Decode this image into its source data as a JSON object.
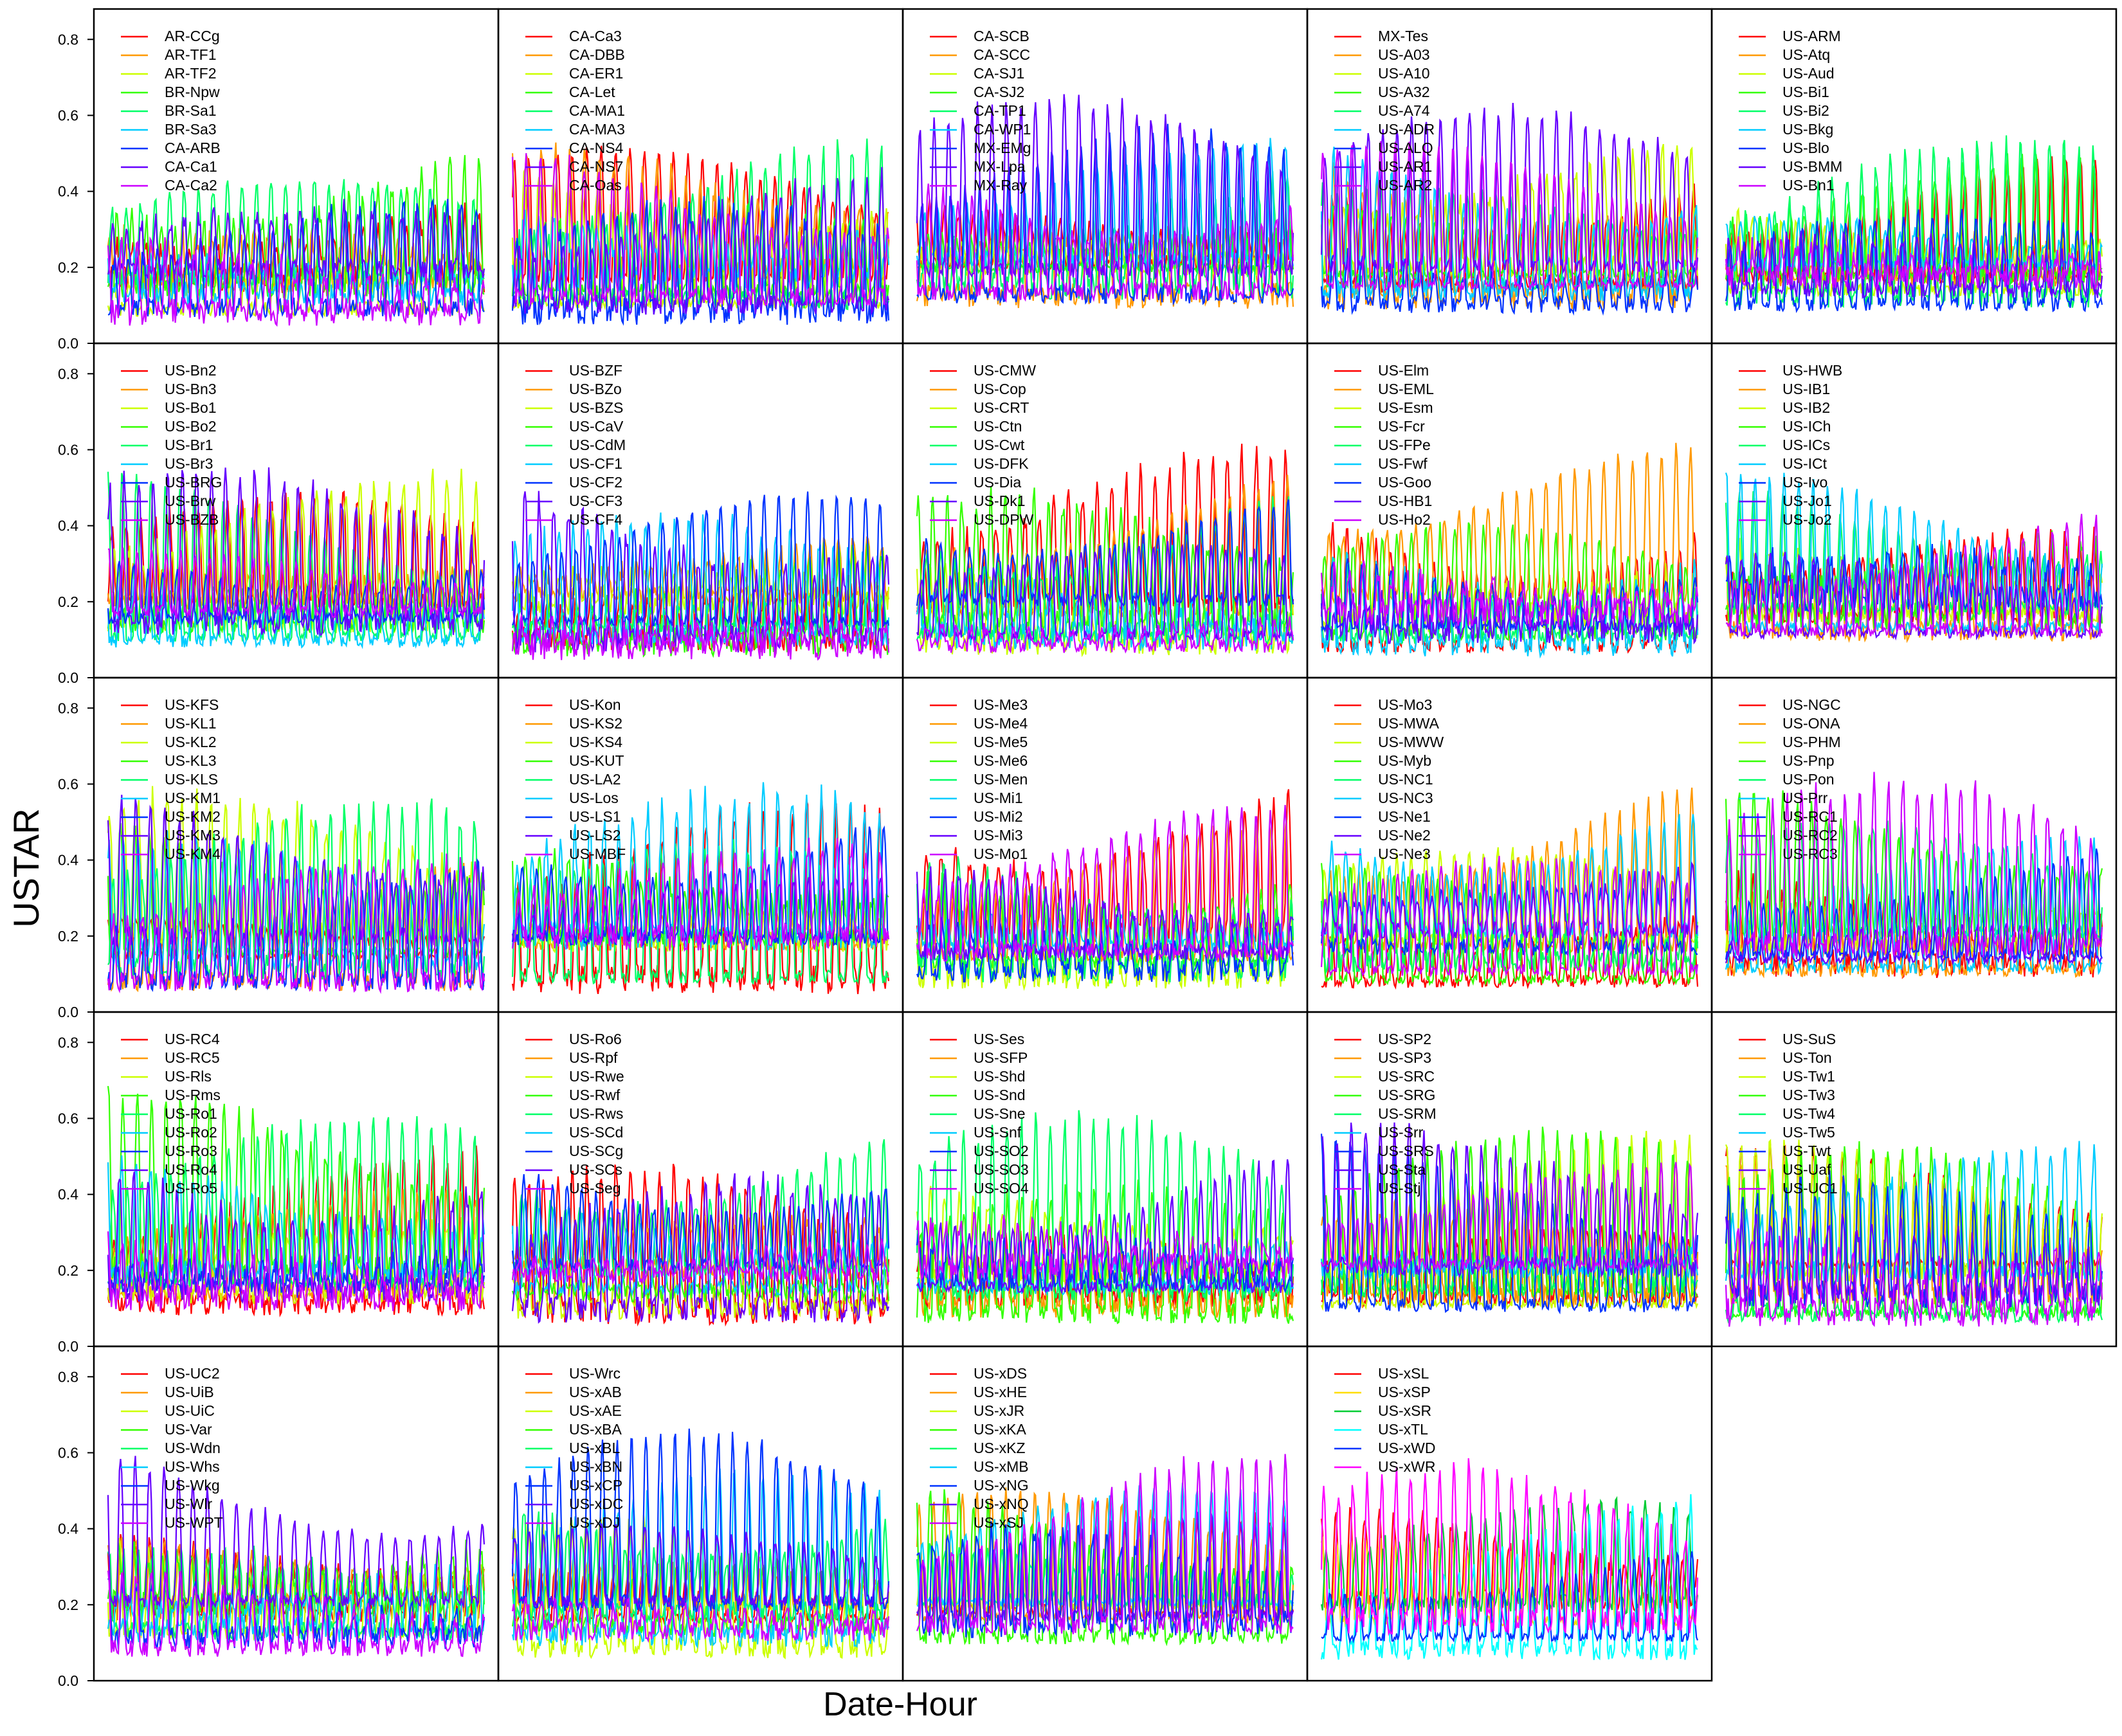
{
  "chart_data": {
    "type": "line",
    "xlabel": "Date-Hour",
    "ylabel": "USTAR",
    "ylim": [
      0,
      0.88
    ],
    "yticks": [
      "0.0",
      "0.2",
      "0.4",
      "0.6",
      "0.8"
    ],
    "grid": false,
    "legend_placement": "top-left",
    "series_colors": [
      "#FF0000",
      "#FF9900",
      "#CCFF00",
      "#33FF00",
      "#00FF66",
      "#00CCFF",
      "#0033FF",
      "#6600FF",
      "#CC00FF",
      "#FF0099"
    ],
    "panels": [
      {
        "series": [
          "AR-CCg",
          "AR-TF1",
          "AR-TF2",
          "BR-Npw",
          "BR-Sa1",
          "BR-Sa3",
          "CA-ARB",
          "CA-Ca1",
          "CA-Ca2"
        ]
      },
      {
        "series": [
          "CA-Ca3",
          "CA-DBB",
          "CA-ER1",
          "CA-Let",
          "CA-MA1",
          "CA-MA3",
          "CA-NS4",
          "CA-NS7",
          "CA-Oas"
        ]
      },
      {
        "series": [
          "CA-SCB",
          "CA-SCC",
          "CA-SJ1",
          "CA-SJ2",
          "CA-TP1",
          "CA-WP1",
          "MX-EMg",
          "MX-Lpa",
          "MX-Ray"
        ]
      },
      {
        "series": [
          "MX-Tes",
          "US-A03",
          "US-A10",
          "US-A32",
          "US-A74",
          "US-ADR",
          "US-ALQ",
          "US-AR1",
          "US-AR2"
        ]
      },
      {
        "series": [
          "US-ARM",
          "US-Atq",
          "US-Aud",
          "US-Bi1",
          "US-Bi2",
          "US-Bkg",
          "US-Blo",
          "US-BMM",
          "US-Bn1"
        ]
      },
      {
        "series": [
          "US-Bn2",
          "US-Bn3",
          "US-Bo1",
          "US-Bo2",
          "US-Br1",
          "US-Br3",
          "US-BRG",
          "US-Brw",
          "US-BZB"
        ]
      },
      {
        "series": [
          "US-BZF",
          "US-BZo",
          "US-BZS",
          "US-CaV",
          "US-CdM",
          "US-CF1",
          "US-CF2",
          "US-CF3",
          "US-CF4"
        ]
      },
      {
        "series": [
          "US-CMW",
          "US-Cop",
          "US-CRT",
          "US-Ctn",
          "US-Cwt",
          "US-DFK",
          "US-Dia",
          "US-Dk1",
          "US-DPW"
        ]
      },
      {
        "series": [
          "US-Elm",
          "US-EML",
          "US-Esm",
          "US-Fcr",
          "US-FPe",
          "US-Fwf",
          "US-Goo",
          "US-HB1",
          "US-Ho2"
        ]
      },
      {
        "series": [
          "US-HWB",
          "US-IB1",
          "US-IB2",
          "US-ICh",
          "US-ICs",
          "US-ICt",
          "US-Ivo",
          "US-Jo1",
          "US-Jo2"
        ]
      },
      {
        "series": [
          "US-KFS",
          "US-KL1",
          "US-KL2",
          "US-KL3",
          "US-KLS",
          "US-KM1",
          "US-KM2",
          "US-KM3",
          "US-KM4"
        ]
      },
      {
        "series": [
          "US-Kon",
          "US-KS2",
          "US-KS4",
          "US-KUT",
          "US-LA2",
          "US-Los",
          "US-LS1",
          "US-LS2",
          "US-MBF"
        ]
      },
      {
        "series": [
          "US-Me3",
          "US-Me4",
          "US-Me5",
          "US-Me6",
          "US-Men",
          "US-Mi1",
          "US-Mi2",
          "US-Mi3",
          "US-Mo1"
        ]
      },
      {
        "series": [
          "US-Mo3",
          "US-MWA",
          "US-MWW",
          "US-Myb",
          "US-NC1",
          "US-NC3",
          "US-Ne1",
          "US-Ne2",
          "US-Ne3"
        ]
      },
      {
        "series": [
          "US-NGC",
          "US-ONA",
          "US-PHM",
          "US-Pnp",
          "US-Pon",
          "US-Prr",
          "US-RC1",
          "US-RC2",
          "US-RC3"
        ]
      },
      {
        "series": [
          "US-RC4",
          "US-RC5",
          "US-Rls",
          "US-Rms",
          "US-Ro1",
          "US-Ro2",
          "US-Ro3",
          "US-Ro4",
          "US-Ro5"
        ]
      },
      {
        "series": [
          "US-Ro6",
          "US-Rpf",
          "US-Rwe",
          "US-Rwf",
          "US-Rws",
          "US-SCd",
          "US-SCg",
          "US-SCs",
          "US-Seg"
        ]
      },
      {
        "series": [
          "US-Ses",
          "US-SFP",
          "US-Shd",
          "US-Snd",
          "US-Sne",
          "US-Snf",
          "US-SO2",
          "US-SO3",
          "US-SO4"
        ]
      },
      {
        "series": [
          "US-SP2",
          "US-SP3",
          "US-SRC",
          "US-SRG",
          "US-SRM",
          "US-Srr",
          "US-SRS",
          "US-Sta",
          "US-Stj"
        ]
      },
      {
        "series": [
          "US-SuS",
          "US-Ton",
          "US-Tw1",
          "US-Tw3",
          "US-Tw4",
          "US-Tw5",
          "US-Twt",
          "US-Uaf",
          "US-UC1"
        ]
      },
      {
        "series": [
          "US-UC2",
          "US-UiB",
          "US-UiC",
          "US-Var",
          "US-Wdn",
          "US-Whs",
          "US-Wkg",
          "US-Wlr",
          "US-WPT"
        ]
      },
      {
        "series": [
          "US-Wrc",
          "US-xAB",
          "US-xAE",
          "US-xBA",
          "US-xBL",
          "US-xBN",
          "US-xCP",
          "US-xDC",
          "US-xDJ"
        ]
      },
      {
        "series": [
          "US-xDS",
          "US-xHE",
          "US-xJR",
          "US-xKA",
          "US-xKZ",
          "US-xMB",
          "US-xNG",
          "US-xNQ",
          "US-xSJ"
        ]
      },
      {
        "series": [
          "US-xSL",
          "US-xSP",
          "US-xSR",
          "US-xTL",
          "US-xWD",
          "US-xWR"
        ],
        "colors": [
          "#FF0000",
          "#FFDD00",
          "#00CC33",
          "#00FFFF",
          "#0033FF",
          "#FF00FF"
        ]
      }
    ]
  }
}
